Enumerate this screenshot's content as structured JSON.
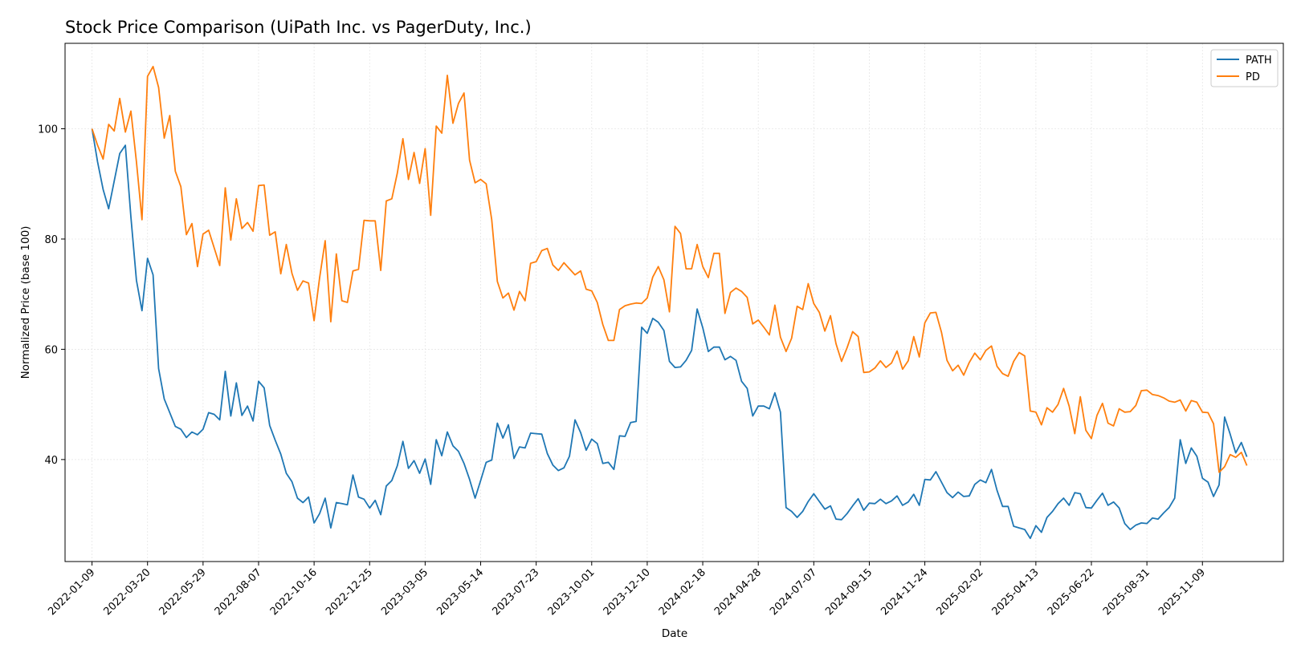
{
  "chart_data": {
    "type": "line",
    "title": "Stock Price Comparison (UiPath Inc. vs PagerDuty, Inc.)",
    "xlabel": "Date",
    "ylabel": "Normalized Price (base 100)",
    "x_ticks": [
      "2022-01-09",
      "2022-03-20",
      "2022-05-29",
      "2022-08-07",
      "2022-10-16",
      "2022-12-25",
      "2023-03-05",
      "2023-05-14",
      "2023-07-23",
      "2023-10-01",
      "2023-12-10",
      "2024-02-18",
      "2024-04-28",
      "2024-07-07",
      "2024-09-15",
      "2024-11-24",
      "2025-02-02",
      "2025-04-13",
      "2025-06-22",
      "2025-08-31",
      "2025-11-09"
    ],
    "y_ticks": [
      40,
      60,
      80,
      100
    ],
    "xlim": [
      "2021-12-06",
      "2026-02-19"
    ],
    "ylim": [
      21.5,
      115.5
    ],
    "grid": true,
    "legend_position": "top-right",
    "x_start": "2022-01-09",
    "x_step_days": 7,
    "series": [
      {
        "name": "PATH",
        "color": "#1f77b4",
        "values": [
          100,
          94,
          89,
          85.5,
          90.5,
          95.5,
          97,
          84,
          72.5,
          67,
          76.5,
          73.5,
          56.5,
          51,
          48.5,
          46,
          45.5,
          44,
          45,
          44.5,
          45.5,
          48.5,
          48.2,
          47.2,
          56,
          47.9,
          53.9,
          48,
          49.7,
          47,
          54.2,
          53,
          46.2,
          43.5,
          41,
          37.5,
          36,
          33,
          32.2,
          33.2,
          28.5,
          30.2,
          33,
          27.6,
          32.2,
          32,
          31.8,
          37.2,
          33.2,
          32.8,
          31.2,
          32.6,
          30,
          35.2,
          36.2,
          38.9,
          43.3,
          38.4,
          39.8,
          37.5,
          40.1,
          35.5,
          43.6,
          40.7,
          45,
          42.5,
          41.5,
          39.3,
          36.4,
          33,
          36.2,
          39.5,
          39.9,
          46.6,
          43.9,
          46.3,
          40.2,
          42.3,
          42.1,
          44.8,
          44.7,
          44.6,
          41.1,
          39,
          38,
          38.5,
          40.6,
          47.2,
          44.9,
          41.7,
          43.7,
          42.9,
          39.3,
          39.5,
          38.2,
          44.3,
          44.2,
          46.7,
          46.9,
          64,
          62.9,
          65.6,
          64.9,
          63.4,
          57.8,
          56.7,
          56.8,
          58,
          59.8,
          67.3,
          63.9,
          59.6,
          60.4,
          60.4,
          58.1,
          58.7,
          58,
          54.2,
          52.9,
          47.9,
          49.7,
          49.7,
          49.2,
          52.1,
          48.6,
          31.3,
          30.6,
          29.5,
          30.6,
          32.4,
          33.8,
          32.4,
          31,
          31.6,
          29.2,
          29.1,
          30.2,
          31.6,
          32.9,
          30.8,
          32.1,
          32,
          32.8,
          32,
          32.5,
          33.4,
          31.7,
          32.3,
          33.7,
          31.7,
          36.4,
          36.3,
          37.8,
          35.9,
          34,
          33.1,
          34.1,
          33.3,
          33.4,
          35.5,
          36.3,
          35.8,
          38.2,
          34.4,
          31.5,
          31.5,
          27.9,
          27.6,
          27.3,
          25.7,
          28,
          26.8,
          29.5,
          30.6,
          32,
          33,
          31.7,
          34,
          33.8,
          31.3,
          31.2,
          32.6,
          33.9,
          31.7,
          32.3,
          31.2,
          28.4,
          27.3,
          28.1,
          28.5,
          28.4,
          29.4,
          29.2,
          30.3,
          31.3,
          33,
          43.6,
          39.3,
          42.1,
          40.6,
          36.6,
          35.9,
          33.3,
          35.4,
          47.7,
          44.6,
          41.2,
          43.1,
          40.5
        ]
      },
      {
        "name": "PD",
        "color": "#ff7f0e",
        "values": [
          100,
          97,
          94.5,
          100.8,
          99.6,
          105.5,
          99.4,
          103.2,
          94,
          83.5,
          109.5,
          111.3,
          107.5,
          98.3,
          102.4,
          92.3,
          89.5,
          80.8,
          82.8,
          75,
          80.9,
          81.6,
          78.4,
          75.2,
          89.3,
          79.8,
          87.3,
          81.9,
          83,
          81.4,
          89.7,
          89.8,
          80.7,
          81.3,
          73.7,
          79,
          73.8,
          70.7,
          72.4,
          72,
          65.2,
          73,
          79.7,
          65,
          77.3,
          68.8,
          68.5,
          74.2,
          74.5,
          83.4,
          83.3,
          83.3,
          74.3,
          86.9,
          87.3,
          92,
          98.2,
          90.8,
          95.7,
          90.1,
          96.4,
          84.3,
          100.5,
          99.2,
          109.7,
          101,
          104.6,
          106.5,
          94.3,
          90.2,
          90.8,
          90,
          83.5,
          72.3,
          69.3,
          70.2,
          67.1,
          70.5,
          68.8,
          75.6,
          75.9,
          77.9,
          78.3,
          75.3,
          74.3,
          75.7,
          74.6,
          73.5,
          74.2,
          70.9,
          70.6,
          68.5,
          64.5,
          61.6,
          61.6,
          67.2,
          67.9,
          68.2,
          68.4,
          68.3,
          69.3,
          73.1,
          75,
          72.6,
          66.8,
          82.3,
          81,
          74.6,
          74.6,
          79,
          75,
          73,
          77.4,
          77.4,
          66.5,
          70.3,
          71.1,
          70.5,
          69.4,
          64.6,
          65.3,
          64,
          62.6,
          68,
          62.2,
          59.6,
          62,
          67.8,
          67.2,
          71.9,
          68.3,
          66.7,
          63.3,
          66.1,
          61,
          57.8,
          60.3,
          63.2,
          62.3,
          55.8,
          55.9,
          56.6,
          57.9,
          56.7,
          57.5,
          59.7,
          56.4,
          57.9,
          62.3,
          58.6,
          64.8,
          66.6,
          66.7,
          63.1,
          58,
          56.1,
          57.1,
          55.3,
          57.6,
          59.3,
          58.1,
          59.8,
          60.6,
          56.9,
          55.6,
          55.1,
          57.8,
          59.4,
          58.8,
          48.8,
          48.6,
          46.3,
          49.4,
          48.6,
          50,
          52.9,
          49.7,
          44.7,
          51.4,
          45.3,
          43.8,
          48,
          50.2,
          46.6,
          46.1,
          49.2,
          48.6,
          48.7,
          49.8,
          52.5,
          52.6,
          51.8,
          51.6,
          51.2,
          50.6,
          50.4,
          50.8,
          48.8,
          50.7,
          50.4,
          48.6,
          48.5,
          46.5,
          37.7,
          38.7,
          40.9,
          40.4,
          41.3,
          38.9
        ]
      }
    ]
  }
}
